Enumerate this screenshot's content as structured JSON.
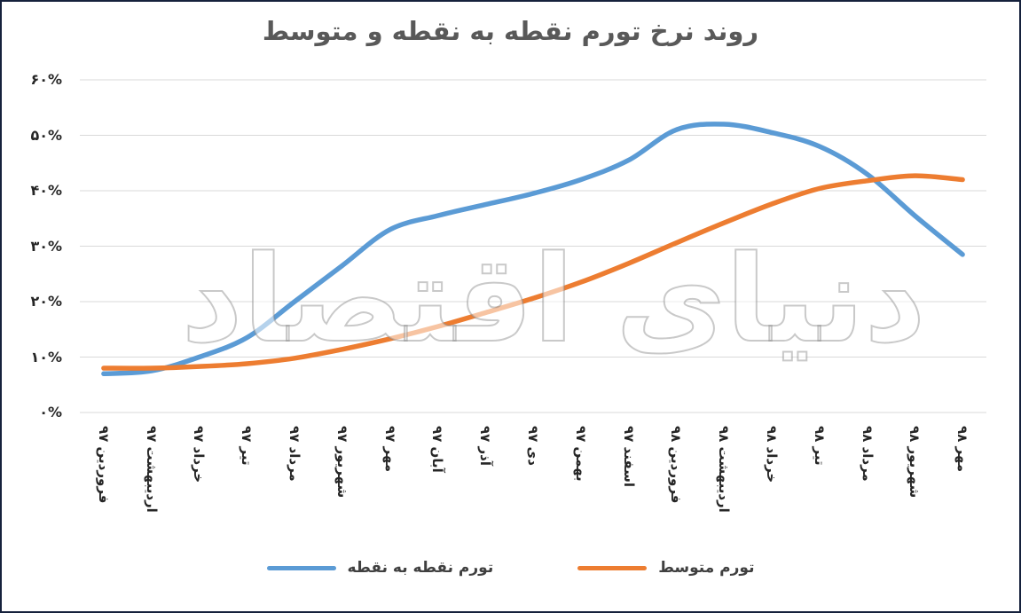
{
  "watermark": "دنیای اقتصاد",
  "chart_data": {
    "type": "line",
    "title": "روند نرخ تورم نقطه به نقطه و متوسط",
    "xlabel": "",
    "ylabel": "",
    "categories": [
      "فروردین ۹۷",
      "اردیبهشت ۹۷",
      "خرداد ۹۷",
      "تیر ۹۷",
      "مرداد ۹۷",
      "شهریور ۹۷",
      "مهر ۹۷",
      "آبان ۹۷",
      "آذر ۹۷",
      "دی ۹۷",
      "بهمن ۹۷",
      "اسفند ۹۷",
      "فروردین ۹۸",
      "اردیبهشت ۹۸",
      "خرداد ۹۸",
      "تیر ۹۸",
      "مرداد ۹۸",
      "شهریور ۹۸",
      "مهر ۹۸"
    ],
    "series": [
      {
        "name": "تورم نقطه به نقطه",
        "color": "#5B9BD5",
        "values": [
          7,
          7.5,
          10,
          13.5,
          20,
          26.5,
          33,
          35.5,
          37.5,
          39.5,
          42,
          45.5,
          51,
          52,
          50.5,
          48,
          43,
          35.5,
          28.5
        ]
      },
      {
        "name": "تورم متوسط",
        "color": "#ED7D31",
        "values": [
          8,
          8,
          8.3,
          8.8,
          9.8,
          11.4,
          13.3,
          15.5,
          18,
          20.6,
          23.5,
          26.9,
          30.6,
          34.2,
          37.6,
          40.4,
          41.8,
          42.7,
          42
        ]
      }
    ],
    "ylim": [
      0,
      60
    ],
    "yticks": [
      0,
      10,
      20,
      30,
      40,
      50,
      60
    ],
    "ytick_labels": [
      "۰%",
      "۱۰%",
      "۲۰%",
      "۳۰%",
      "۴۰%",
      "۵۰%",
      "۶۰%"
    ],
    "grid": true,
    "legend_position": "bottom",
    "gridline_color": "#d9d9d9",
    "title_color": "#595959"
  }
}
